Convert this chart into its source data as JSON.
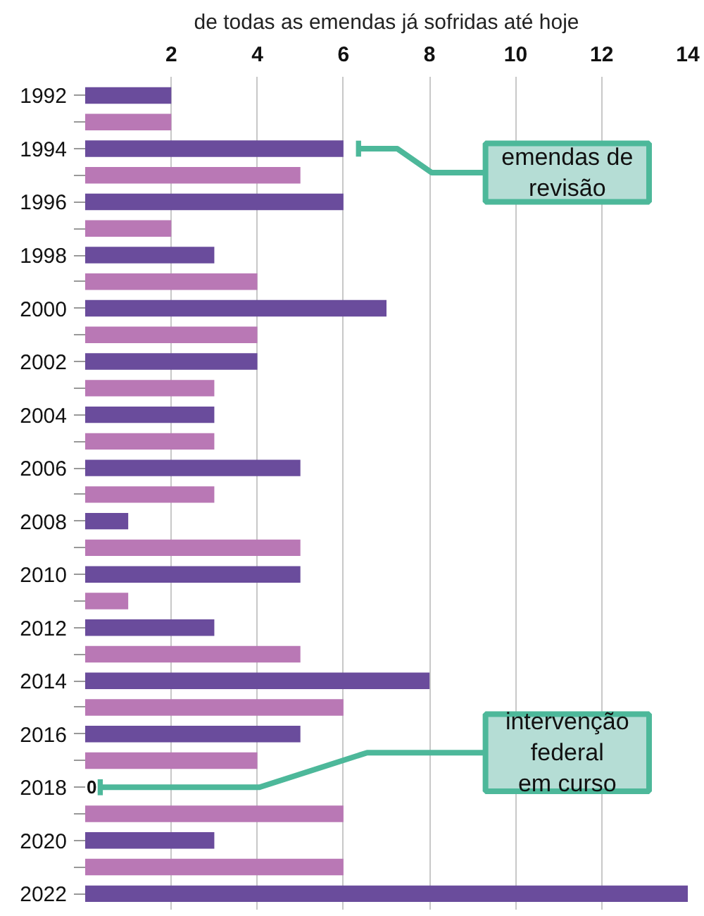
{
  "chart_data": {
    "type": "bar",
    "orientation": "horizontal",
    "title": "de todas as emendas já sofridas até hoje",
    "categories": [
      "1992",
      null,
      "1994",
      null,
      "1996",
      null,
      "1998",
      null,
      "2000",
      null,
      "2002",
      null,
      "2004",
      null,
      "2006",
      null,
      "2008",
      null,
      "2010",
      null,
      "2012",
      null,
      "2014",
      null,
      "2016",
      null,
      "2018",
      null,
      "2020",
      null,
      "2022"
    ],
    "values": [
      2,
      2,
      6,
      5,
      6,
      2,
      3,
      4,
      7,
      4,
      4,
      3,
      3,
      3,
      5,
      3,
      1,
      5,
      5,
      1,
      3,
      5,
      8,
      6,
      5,
      4,
      0,
      6,
      3,
      6,
      14
    ],
    "colors": [
      "#6a4c9c",
      "#b978b5",
      "#6a4c9c",
      "#b978b5",
      "#6a4c9c",
      "#b978b5",
      "#6a4c9c",
      "#b978b5",
      "#6a4c9c",
      "#b978b5",
      "#6a4c9c",
      "#b978b5",
      "#6a4c9c",
      "#b978b5",
      "#6a4c9c",
      "#b978b5",
      "#6a4c9c",
      "#b978b5",
      "#6a4c9c",
      "#b978b5",
      "#6a4c9c",
      "#b978b5",
      "#6a4c9c",
      "#b978b5",
      "#6a4c9c",
      "#b978b5",
      "#6a4c9c",
      "#b978b5",
      "#6a4c9c",
      "#b978b5",
      "#6a4c9c"
    ],
    "value_labels": [
      null,
      null,
      null,
      null,
      null,
      null,
      null,
      null,
      null,
      null,
      null,
      null,
      null,
      null,
      null,
      null,
      null,
      null,
      null,
      null,
      null,
      null,
      null,
      null,
      null,
      null,
      "0",
      null,
      null,
      null,
      null
    ],
    "xlim": [
      0,
      14
    ],
    "xticks": [
      2,
      4,
      6,
      8,
      10,
      12,
      14
    ],
    "grid": "x",
    "annotations": [
      "emendas de\nrevisão",
      "intervenção\nfederal\nem curso"
    ]
  }
}
